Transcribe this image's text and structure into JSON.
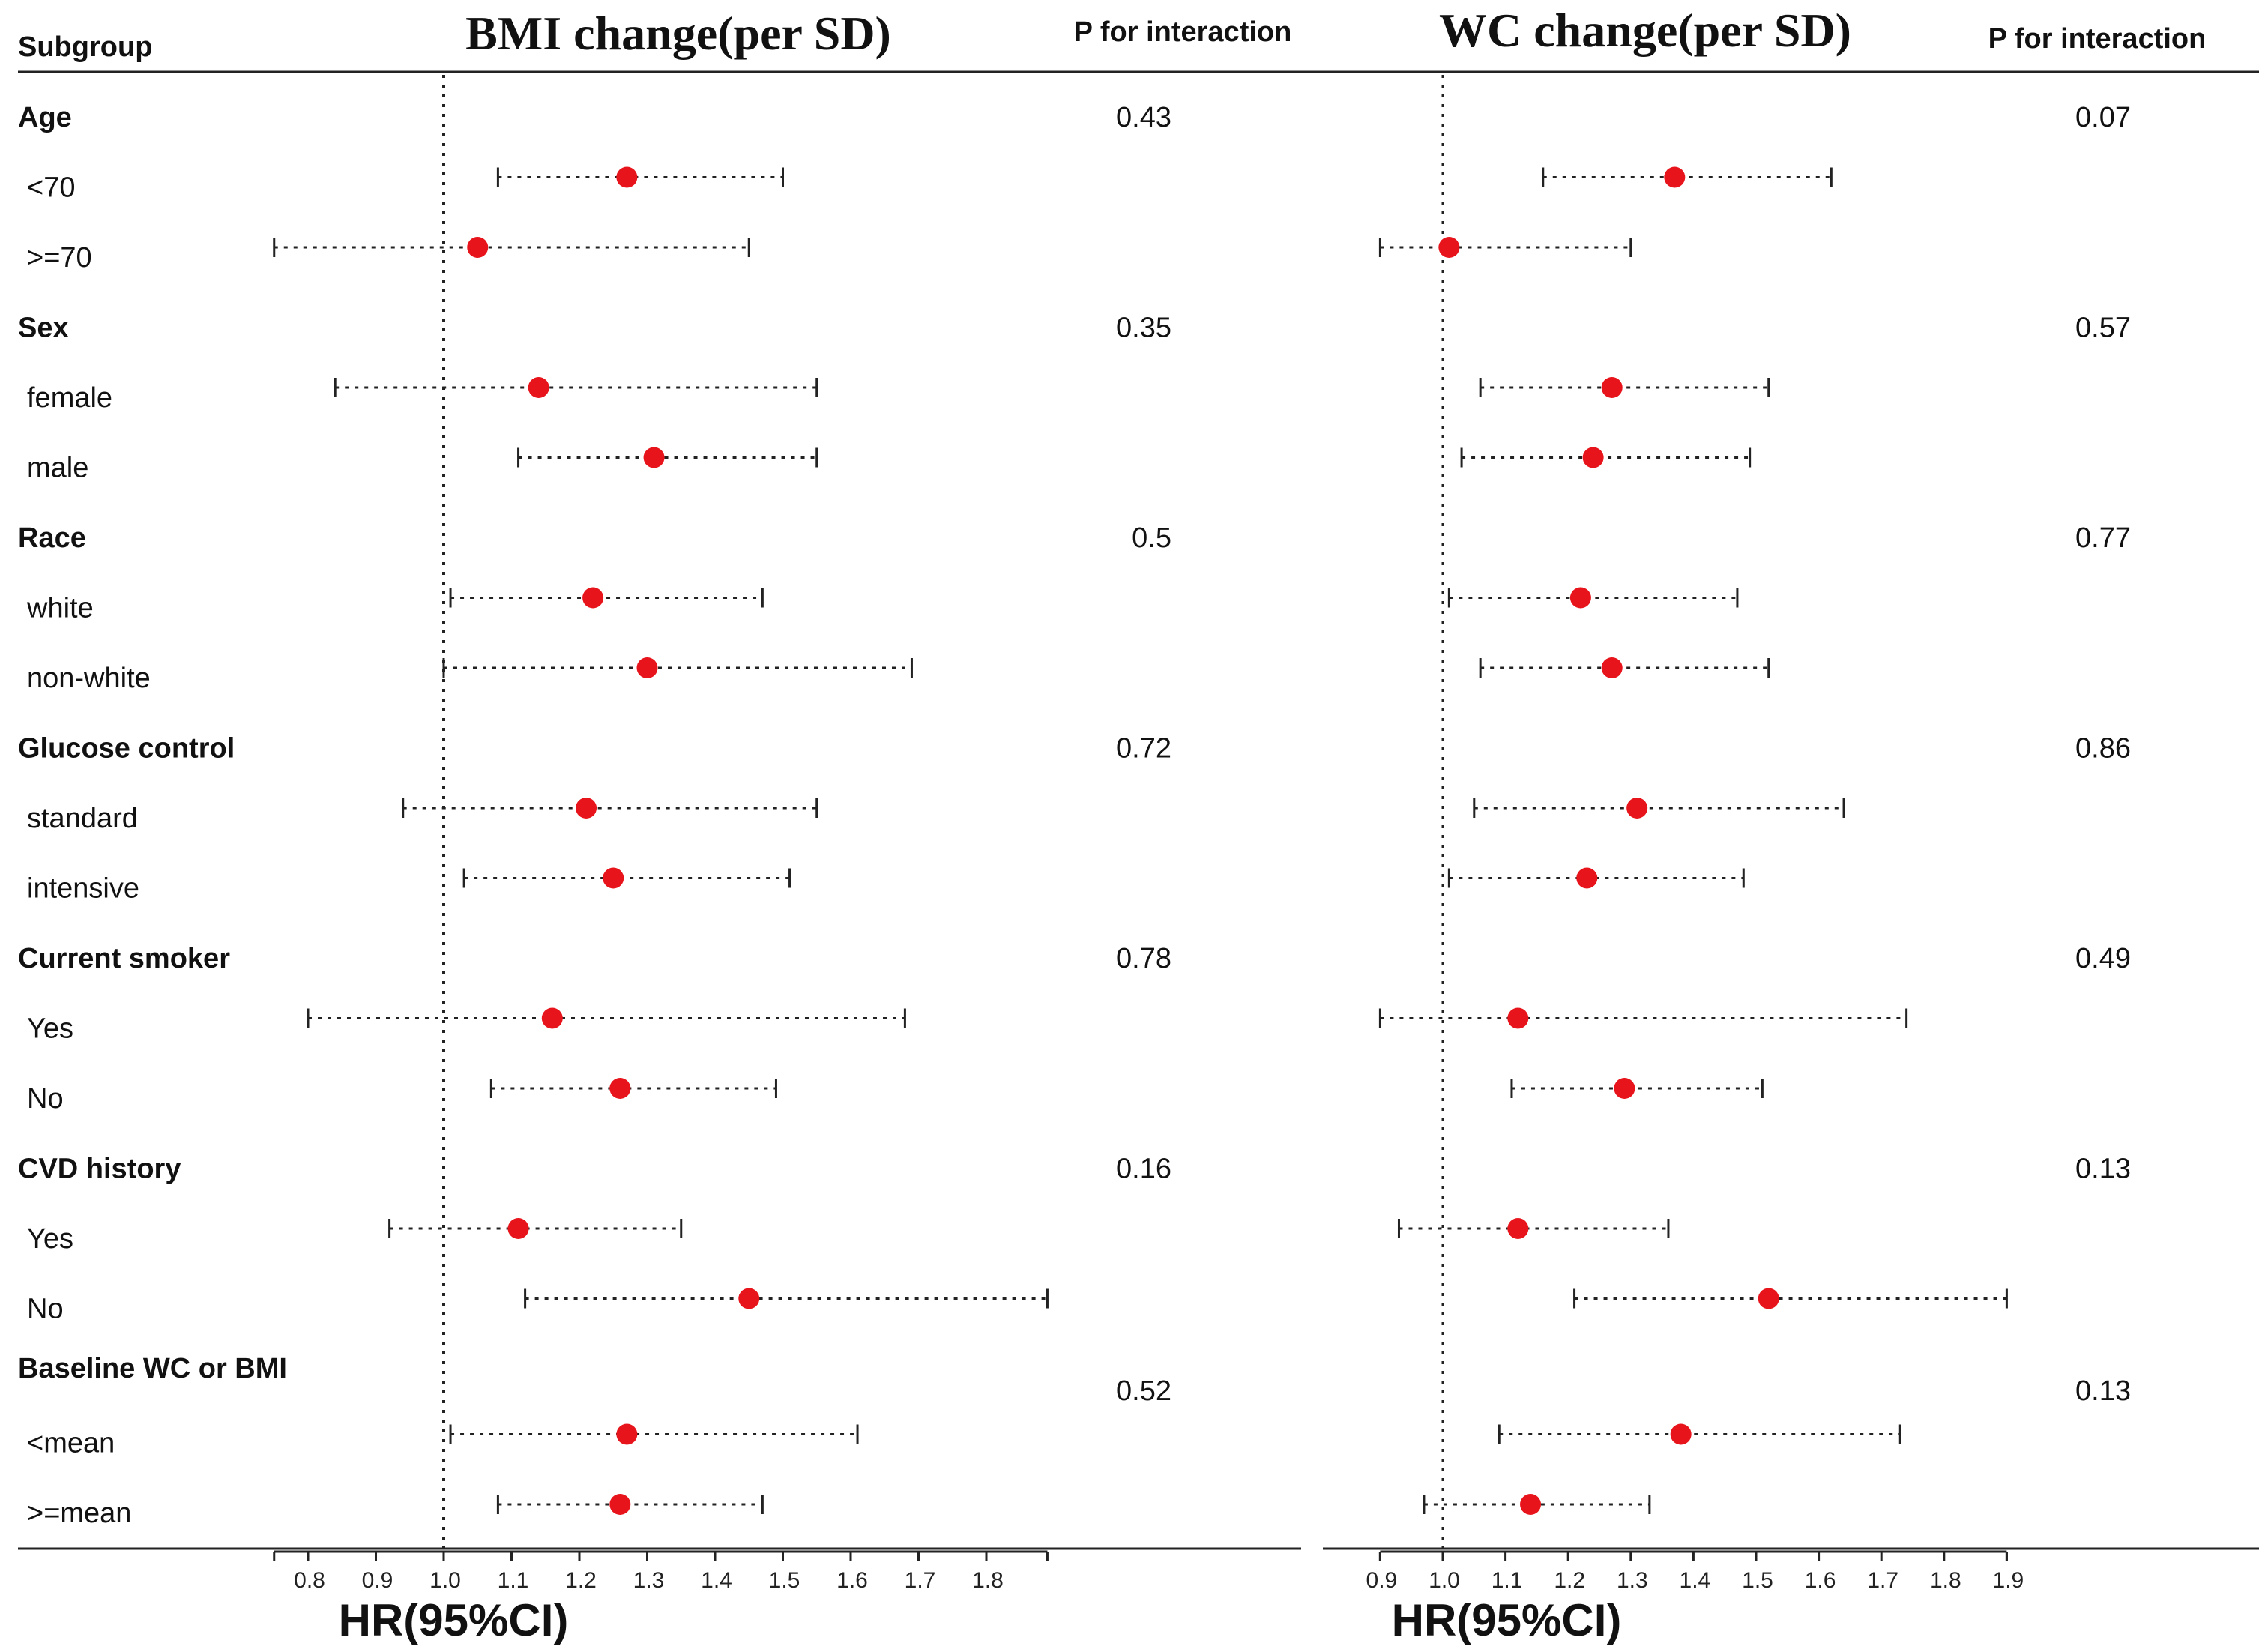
{
  "header": {
    "subgroup_label": "Subgroup",
    "left_title": "BMI change(per SD)",
    "right_title": "WC change(per SD)",
    "p_label_left": "P for interaction",
    "p_label_right": "P for interaction"
  },
  "rows": [
    {
      "label": "Age",
      "bold": true,
      "p_left": "0.43",
      "p_right": "0.07"
    },
    {
      "label": "<70",
      "bold": false
    },
    {
      "label": ">=70",
      "bold": false
    },
    {
      "label": "Sex",
      "bold": true,
      "p_left": "0.35",
      "p_right": "0.57"
    },
    {
      "label": "female",
      "bold": false
    },
    {
      "label": "male",
      "bold": false
    },
    {
      "label": "Race",
      "bold": true,
      "p_left": "0.5",
      "p_right": "0.77"
    },
    {
      "label": "white",
      "bold": false
    },
    {
      "label": "non-white",
      "bold": false
    },
    {
      "label": "Glucose control",
      "bold": true,
      "p_left": "0.72",
      "p_right": "0.86"
    },
    {
      "label": "standard",
      "bold": false
    },
    {
      "label": "intensive",
      "bold": false
    },
    {
      "label": "Current smoker",
      "bold": true,
      "p_left": "0.78",
      "p_right": "0.49"
    },
    {
      "label": "Yes",
      "bold": false
    },
    {
      "label": "No",
      "bold": false
    },
    {
      "label": "CVD history",
      "bold": true,
      "p_left": "0.16",
      "p_right": "0.13"
    },
    {
      "label": "Yes",
      "bold": false
    },
    {
      "label": "No",
      "bold": false
    },
    {
      "label": "Baseline WC or BMI",
      "bold": true,
      "p_left": "0.52",
      "p_right": "0.13"
    },
    {
      "label": "<mean",
      "bold": false
    },
    {
      "label": ">=mean",
      "bold": false
    }
  ],
  "chart_data": [
    {
      "type": "forest",
      "title": "BMI change(per SD)",
      "xlabel": "HR(95%CI)",
      "reference_line": 1.0,
      "xlim": [
        0.75,
        1.89
      ],
      "tick_labels": [
        "0.8",
        "0.9",
        "1.0",
        "1.1",
        "1.2",
        "1.3",
        "1.4",
        "1.5",
        "1.6",
        "1.7",
        "1.8"
      ],
      "estimates": [
        {
          "subgroup": "Age <70",
          "hr": 1.27,
          "lower": 1.08,
          "upper": 1.5
        },
        {
          "subgroup": "Age >=70",
          "hr": 1.05,
          "lower": 0.75,
          "upper": 1.45
        },
        {
          "subgroup": "Sex female",
          "hr": 1.14,
          "lower": 0.84,
          "upper": 1.55
        },
        {
          "subgroup": "Sex male",
          "hr": 1.31,
          "lower": 1.11,
          "upper": 1.55
        },
        {
          "subgroup": "Race white",
          "hr": 1.22,
          "lower": 1.01,
          "upper": 1.47
        },
        {
          "subgroup": "Race non-white",
          "hr": 1.3,
          "lower": 1.0,
          "upper": 1.69
        },
        {
          "subgroup": "Glucose control standard",
          "hr": 1.21,
          "lower": 0.94,
          "upper": 1.55
        },
        {
          "subgroup": "Glucose control intensive",
          "hr": 1.25,
          "lower": 1.03,
          "upper": 1.51
        },
        {
          "subgroup": "Current smoker Yes",
          "hr": 1.16,
          "lower": 0.8,
          "upper": 1.68
        },
        {
          "subgroup": "Current smoker No",
          "hr": 1.26,
          "lower": 1.07,
          "upper": 1.49
        },
        {
          "subgroup": "CVD history Yes",
          "hr": 1.11,
          "lower": 0.92,
          "upper": 1.35
        },
        {
          "subgroup": "CVD history No",
          "hr": 1.45,
          "lower": 1.12,
          "upper": 1.89
        },
        {
          "subgroup": "Baseline <mean",
          "hr": 1.27,
          "lower": 1.01,
          "upper": 1.61
        },
        {
          "subgroup": "Baseline >=mean",
          "hr": 1.26,
          "lower": 1.08,
          "upper": 1.47
        }
      ]
    },
    {
      "type": "forest",
      "title": "WC change(per SD)",
      "xlabel": "HR(95%CI)",
      "reference_line": 1.0,
      "xlim": [
        0.9,
        1.9
      ],
      "tick_labels": [
        "0.9",
        "1.0",
        "1.1",
        "1.2",
        "1.3",
        "1.4",
        "1.5",
        "1.6",
        "1.7",
        "1.8",
        "1.9"
      ],
      "estimates": [
        {
          "subgroup": "Age <70",
          "hr": 1.37,
          "lower": 1.16,
          "upper": 1.62
        },
        {
          "subgroup": "Age >=70",
          "hr": 1.01,
          "lower": 0.9,
          "upper": 1.3
        },
        {
          "subgroup": "Sex female",
          "hr": 1.27,
          "lower": 1.06,
          "upper": 1.52
        },
        {
          "subgroup": "Sex male",
          "hr": 1.24,
          "lower": 1.03,
          "upper": 1.49
        },
        {
          "subgroup": "Race white",
          "hr": 1.22,
          "lower": 1.01,
          "upper": 1.47
        },
        {
          "subgroup": "Race non-white",
          "hr": 1.27,
          "lower": 1.06,
          "upper": 1.52
        },
        {
          "subgroup": "Glucose control standard",
          "hr": 1.31,
          "lower": 1.05,
          "upper": 1.64
        },
        {
          "subgroup": "Glucose control intensive",
          "hr": 1.23,
          "lower": 1.01,
          "upper": 1.48
        },
        {
          "subgroup": "Current smoker Yes",
          "hr": 1.12,
          "lower": 0.9,
          "upper": 1.74
        },
        {
          "subgroup": "Current smoker No",
          "hr": 1.29,
          "lower": 1.11,
          "upper": 1.51
        },
        {
          "subgroup": "CVD history Yes",
          "hr": 1.12,
          "lower": 0.93,
          "upper": 1.36
        },
        {
          "subgroup": "CVD history No",
          "hr": 1.52,
          "lower": 1.21,
          "upper": 1.9
        },
        {
          "subgroup": "Baseline <mean",
          "hr": 1.38,
          "lower": 1.09,
          "upper": 1.73
        },
        {
          "subgroup": "Baseline >=mean",
          "hr": 1.14,
          "lower": 0.97,
          "upper": 1.33
        }
      ]
    }
  ],
  "colors": {
    "point": "#e8141b",
    "ink": "#111111"
  }
}
